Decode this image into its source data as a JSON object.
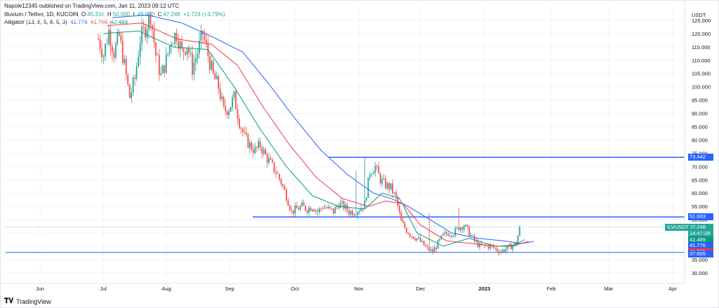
{
  "header": {
    "publisher": "Napole12345 published on TradingView.com, Jan 11, 2023 09:12 UTC",
    "symbol_line": "Illuvium / Tether, 1D, KUCOIN",
    "o_label": "O",
    "o_value": "45.316",
    "h_label": "H",
    "h_value": "50.000",
    "l_label": "L",
    "l_value": "45.000",
    "c_label": "C",
    "c_value": "47.248",
    "change": "+1.724 (+3.79%)",
    "indicator_line": "Alligator (13, 8, 5, 8, 5, 3)",
    "ind_jaw": "41.776",
    "ind_teeth": "41.765",
    "ind_lips": "42.489"
  },
  "footer": {
    "brand": "TradingView"
  },
  "colors": {
    "up": "#26a69a",
    "down": "#ef5350",
    "jaw": "#2962ff",
    "teeth": "#f23645",
    "lips": "#089981",
    "hline": "#2962ff"
  },
  "chart_data": {
    "type": "candlestick",
    "currency_label": "USDT",
    "y_ticks": [
      "125.000",
      "120.000",
      "115.000",
      "110.000",
      "105.000",
      "100.000",
      "95.000",
      "90.000",
      "85.000",
      "80.000",
      "75.000",
      "70.000",
      "65.000",
      "60.000",
      "55.000",
      "50.000",
      "45.000",
      "40.000",
      "35.000",
      "30.000"
    ],
    "x_ticks": [
      "Jun",
      "Jul",
      "Aug",
      "Sep",
      "Oct",
      "Nov",
      "Dec",
      "2023",
      "Feb",
      "Mar",
      "Apr"
    ],
    "ylim": [
      26,
      130
    ],
    "horizontal_levels": [
      73.442,
      51.003,
      37.665
    ],
    "price_labels": {
      "symbol": "ILVUSDT",
      "last_price": "47.248",
      "countdown": "14:47:28",
      "lips": "42.489",
      "jaw": "41.776",
      "teeth": "41.765",
      "level_top": "73.442",
      "level_mid": "51.003",
      "level_low": "37.665"
    },
    "series": [
      {
        "name": "Illuvium / Tether",
        "anchors_close": [
          [
            0,
            118
          ],
          [
            3,
            112
          ],
          [
            6,
            121
          ],
          [
            9,
            113
          ],
          [
            12,
            119
          ],
          [
            15,
            108
          ],
          [
            18,
            96
          ],
          [
            21,
            103
          ],
          [
            24,
            118
          ],
          [
            27,
            122
          ],
          [
            30,
            127
          ],
          [
            33,
            112
          ],
          [
            36,
            104
          ],
          [
            39,
            110
          ],
          [
            42,
            118
          ],
          [
            45,
            120
          ],
          [
            48,
            113
          ],
          [
            51,
            116
          ],
          [
            54,
            107
          ],
          [
            57,
            113
          ],
          [
            60,
            120
          ],
          [
            63,
            112
          ],
          [
            66,
            104
          ],
          [
            69,
            100
          ],
          [
            72,
            91
          ],
          [
            75,
            92
          ],
          [
            78,
            96
          ],
          [
            81,
            87
          ],
          [
            84,
            81
          ],
          [
            87,
            78
          ],
          [
            90,
            76
          ],
          [
            93,
            78
          ],
          [
            96,
            74
          ],
          [
            99,
            71
          ],
          [
            102,
            68
          ],
          [
            105,
            64
          ],
          [
            108,
            59
          ],
          [
            111,
            53
          ],
          [
            114,
            54
          ],
          [
            117,
            55
          ],
          [
            120,
            54
          ],
          [
            123,
            55
          ],
          [
            126,
            53
          ],
          [
            129,
            55
          ],
          [
            132,
            54
          ],
          [
            135,
            53
          ],
          [
            138,
            56
          ],
          [
            141,
            55
          ],
          [
            144,
            53
          ],
          [
            147,
            53
          ],
          [
            150,
            54
          ],
          [
            153,
            56
          ],
          [
            156,
            68
          ],
          [
            159,
            70
          ],
          [
            162,
            65
          ],
          [
            165,
            63
          ],
          [
            168,
            62
          ],
          [
            171,
            58
          ],
          [
            174,
            49
          ],
          [
            177,
            46
          ],
          [
            180,
            44
          ],
          [
            183,
            43
          ],
          [
            186,
            41
          ],
          [
            189,
            39
          ],
          [
            192,
            38
          ],
          [
            195,
            41
          ],
          [
            198,
            44
          ],
          [
            201,
            45
          ],
          [
            204,
            45
          ],
          [
            207,
            47
          ],
          [
            210,
            48
          ],
          [
            213,
            45
          ],
          [
            216,
            42
          ],
          [
            219,
            40
          ],
          [
            222,
            40
          ],
          [
            225,
            40
          ],
          [
            228,
            39
          ],
          [
            231,
            38
          ],
          [
            234,
            39
          ],
          [
            237,
            40
          ],
          [
            240,
            41
          ],
          [
            242,
            47
          ]
        ],
        "jaw_anchors": [
          [
            0,
            126
          ],
          [
            20,
            127
          ],
          [
            40,
            124
          ],
          [
            60,
            118
          ],
          [
            75,
            113
          ],
          [
            90,
            101
          ],
          [
            105,
            88
          ],
          [
            120,
            76
          ],
          [
            135,
            67
          ],
          [
            150,
            60
          ],
          [
            160,
            58
          ],
          [
            170,
            55
          ],
          [
            180,
            51
          ],
          [
            195,
            45
          ],
          [
            210,
            43
          ],
          [
            225,
            42
          ],
          [
            235,
            41
          ],
          [
            242,
            41.8
          ]
        ],
        "teeth_anchors": [
          [
            0,
            123
          ],
          [
            20,
            124
          ],
          [
            40,
            118
          ],
          [
            60,
            116
          ],
          [
            75,
            108
          ],
          [
            90,
            92
          ],
          [
            105,
            78
          ],
          [
            120,
            66
          ],
          [
            135,
            58
          ],
          [
            150,
            55
          ],
          [
            160,
            57
          ],
          [
            170,
            56
          ],
          [
            180,
            48
          ],
          [
            195,
            42
          ],
          [
            210,
            41
          ],
          [
            225,
            40
          ],
          [
            235,
            40.5
          ],
          [
            242,
            41.8
          ]
        ],
        "lips_anchors": [
          [
            0,
            120
          ],
          [
            20,
            121
          ],
          [
            40,
            115
          ],
          [
            60,
            114
          ],
          [
            75,
            100
          ],
          [
            90,
            84
          ],
          [
            105,
            70
          ],
          [
            120,
            59
          ],
          [
            135,
            55
          ],
          [
            150,
            54
          ],
          [
            160,
            60
          ],
          [
            170,
            58
          ],
          [
            180,
            45
          ],
          [
            195,
            40
          ],
          [
            210,
            43
          ],
          [
            225,
            40
          ],
          [
            235,
            40
          ],
          [
            242,
            42.5
          ]
        ]
      }
    ]
  }
}
